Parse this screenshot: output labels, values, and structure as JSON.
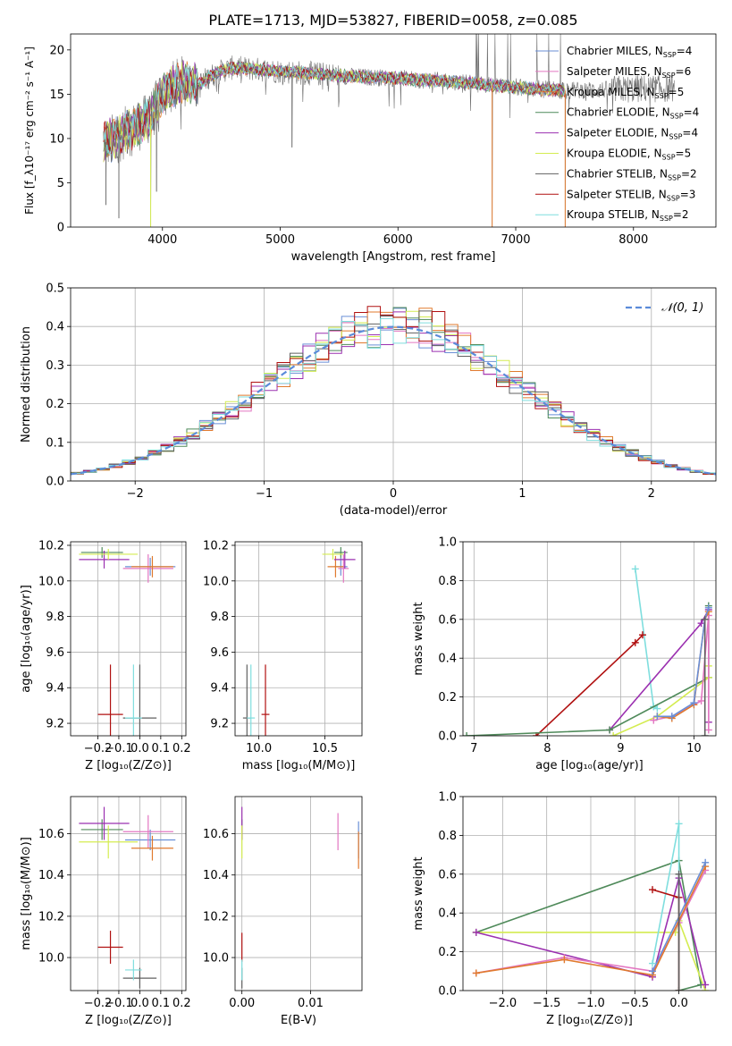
{
  "figure_title": "PLATE=1713, MJD=53827, FIBERID=0058, z=0.085",
  "colors": {
    "Chabrier MILES": "#6a8fd6",
    "Salpeter MILES": "#e377c2",
    "Kroupa MILES": "#e07a2e",
    "Chabrier ELODIE": "#4f8a5a",
    "Salpeter ELODIE": "#9b30b0",
    "Kroupa ELODIE": "#d4ec50",
    "Chabrier STELIB": "#606060",
    "Salpeter STELIB": "#b01010",
    "Kroupa STELIB": "#7fdede",
    "gaussian": "#5b8bd9"
  },
  "chart_data": [
    {
      "type": "line",
      "name": "spectrum",
      "xlabel": "wavelength [Angstrom, rest frame]",
      "ylabel": "Flux [f_λ10⁻¹⁷ erg cm⁻² s⁻¹ A⁻¹]",
      "xlim": [
        3220,
        8700
      ],
      "ylim": [
        0,
        21.8
      ],
      "xticks": [
        4000,
        5000,
        6000,
        7000,
        8000
      ],
      "yticks": [
        0,
        5,
        10,
        15,
        20
      ],
      "legend_position": "right",
      "series": [
        {
          "name": "Chabrier MILES",
          "nssp": 4
        },
        {
          "name": "Salpeter MILES",
          "nssp": 6
        },
        {
          "name": "Kroupa MILES",
          "nssp": 5
        },
        {
          "name": "Chabrier ELODIE",
          "nssp": 4
        },
        {
          "name": "Salpeter ELODIE",
          "nssp": 4
        },
        {
          "name": "Kroupa ELODIE",
          "nssp": 5
        },
        {
          "name": "Chabrier STELIB",
          "nssp": 2
        },
        {
          "name": "Salpeter STELIB",
          "nssp": 3
        },
        {
          "name": "Kroupa STELIB",
          "nssp": 2
        }
      ],
      "continuum": {
        "x": [
          3500,
          3600,
          3700,
          3800,
          3900,
          4000,
          4100,
          4200,
          4300,
          4400,
          4500,
          4600,
          4800,
          5000,
          5200,
          5400,
          5600,
          5800,
          6000,
          6200,
          6400,
          6600,
          6800,
          7000,
          7200,
          7400
        ],
        "y": [
          9.5,
          10.0,
          10.8,
          11.5,
          12.5,
          15.0,
          16.0,
          16.5,
          16.0,
          17.0,
          17.6,
          18.0,
          17.8,
          17.6,
          17.4,
          17.2,
          17.0,
          16.9,
          16.8,
          16.6,
          16.5,
          16.3,
          16.0,
          15.8,
          15.6,
          15.4
        ]
      },
      "dips": [
        {
          "x": 3520,
          "y": 2.5
        },
        {
          "x": 3630,
          "y": 1.0
        },
        {
          "x": 3900,
          "y": 0.0
        },
        {
          "x": 3950,
          "y": 4.0
        },
        {
          "x": 5100,
          "y": 9.0
        },
        {
          "x": 6800,
          "y": 0.0
        },
        {
          "x": 7420,
          "y": 0.0
        }
      ]
    },
    {
      "type": "histogram",
      "name": "residuals",
      "xlabel": "(data-model)/error",
      "ylabel": "Normed distribution",
      "xlim": [
        -2.5,
        2.5
      ],
      "ylim": [
        0,
        0.5
      ],
      "xticks": [
        -2,
        -1,
        0,
        1,
        2
      ],
      "yticks": [
        0.0,
        0.1,
        0.2,
        0.3,
        0.4,
        0.5
      ],
      "grid": true,
      "bin_width": 0.1,
      "legend": "𝒩(0, 1)"
    },
    {
      "type": "scatter",
      "name": "age_vs_Z",
      "xlabel": "Z [log₁₀(Z/Z⊙)]",
      "ylabel": "age  [log₁₀(age/yr)]",
      "xlim": [
        -0.33,
        0.22
      ],
      "ylim": [
        9.13,
        10.22
      ],
      "xticks": [
        -0.2,
        -0.1,
        0.0,
        0.1,
        0.2
      ],
      "yticks": [
        9.2,
        9.4,
        9.6,
        9.8,
        10.0,
        10.2
      ],
      "grid": true,
      "points": [
        {
          "series": "Chabrier MILES",
          "x": 0.05,
          "y": 10.08,
          "xerr": 0.12,
          "yerr": 0.05
        },
        {
          "series": "Salpeter MILES",
          "x": 0.04,
          "y": 10.07,
          "xerr": 0.12,
          "yerr": 0.08
        },
        {
          "series": "Kroupa MILES",
          "x": 0.06,
          "y": 10.08,
          "xerr": 0.1,
          "yerr": 0.06
        },
        {
          "series": "Chabrier ELODIE",
          "x": -0.18,
          "y": 10.16,
          "xerr": 0.1,
          "yerr": 0.03
        },
        {
          "series": "Salpeter ELODIE",
          "x": -0.17,
          "y": 10.12,
          "xerr": 0.12,
          "yerr": 0.05
        },
        {
          "series": "Kroupa ELODIE",
          "x": -0.15,
          "y": 10.15,
          "xerr": 0.14,
          "yerr": 0.03
        },
        {
          "series": "Chabrier STELIB",
          "x": 0.0,
          "y": 9.23,
          "xerr": 0.08,
          "yerr": 0.3
        },
        {
          "series": "Salpeter STELIB",
          "x": -0.14,
          "y": 9.25,
          "xerr": 0.06,
          "yerr": 0.28
        },
        {
          "series": "Kroupa STELIB",
          "x": -0.03,
          "y": 9.23,
          "xerr": 0.04,
          "yerr": 0.3
        }
      ]
    },
    {
      "type": "scatter",
      "name": "age_vs_mass",
      "xlabel": "mass [log₁₀(M/M⊙)]",
      "ylabel": "",
      "xlim": [
        9.82,
        10.78
      ],
      "ylim": [
        9.13,
        10.22
      ],
      "xticks": [
        10.0,
        10.5
      ],
      "yticks": [
        9.2,
        9.4,
        9.6,
        9.8,
        10.0,
        10.2
      ],
      "grid": true,
      "points": [
        {
          "series": "Chabrier MILES",
          "x": 10.62,
          "y": 10.08,
          "xerr": 0.05,
          "yerr": 0.05
        },
        {
          "series": "Salpeter MILES",
          "x": 10.64,
          "y": 10.07,
          "xerr": 0.04,
          "yerr": 0.08
        },
        {
          "series": "Kroupa MILES",
          "x": 10.58,
          "y": 10.08,
          "xerr": 0.06,
          "yerr": 0.06
        },
        {
          "series": "Chabrier ELODIE",
          "x": 10.62,
          "y": 10.16,
          "xerr": 0.05,
          "yerr": 0.03
        },
        {
          "series": "Salpeter ELODIE",
          "x": 10.65,
          "y": 10.12,
          "xerr": 0.08,
          "yerr": 0.05
        },
        {
          "series": "Kroupa ELODIE",
          "x": 10.56,
          "y": 10.15,
          "xerr": 0.08,
          "yerr": 0.03
        },
        {
          "series": "Chabrier STELIB",
          "x": 9.91,
          "y": 9.23,
          "xerr": 0.03,
          "yerr": 0.3
        },
        {
          "series": "Salpeter STELIB",
          "x": 10.05,
          "y": 9.25,
          "xerr": 0.03,
          "yerr": 0.28
        },
        {
          "series": "Kroupa STELIB",
          "x": 9.94,
          "y": 9.23,
          "xerr": 0.03,
          "yerr": 0.3
        }
      ]
    },
    {
      "type": "line",
      "name": "mass_weight_vs_age",
      "xlabel": "age  [log₁₀(age/yr)]",
      "ylabel": "mass weight",
      "xlim": [
        6.85,
        10.3
      ],
      "ylim": [
        0,
        1.0
      ],
      "xticks": [
        7,
        8,
        9,
        10
      ],
      "yticks": [
        0.0,
        0.2,
        0.4,
        0.6,
        0.8,
        1.0
      ],
      "grid": true,
      "series": [
        {
          "name": "Kroupa STELIB",
          "x": [
            9.2,
            9.45,
            9.5
          ],
          "y": [
            0.86,
            0.15,
            0.14
          ]
        },
        {
          "name": "Salpeter STELIB",
          "x": [
            7.85,
            9.2,
            9.3
          ],
          "y": [
            0.0,
            0.48,
            0.52
          ]
        },
        {
          "name": "Salpeter ELODIE",
          "x": [
            8.85,
            10.1,
            10.2,
            10.2
          ],
          "y": [
            0.03,
            0.58,
            0.65,
            0.07
          ]
        },
        {
          "name": "Chabrier ELODIE",
          "x": [
            6.9,
            8.85,
            10.2,
            10.2
          ],
          "y": [
            0.0,
            0.03,
            0.3,
            0.67
          ]
        },
        {
          "name": "Kroupa ELODIE",
          "x": [
            8.9,
            9.5,
            10.2,
            10.2
          ],
          "y": [
            0.0,
            0.1,
            0.3,
            0.36
          ]
        },
        {
          "name": "Salpeter MILES",
          "x": [
            9.45,
            9.7,
            10.1,
            10.2,
            10.2
          ],
          "y": [
            0.08,
            0.1,
            0.18,
            0.62,
            0.03
          ]
        },
        {
          "name": "Kroupa MILES",
          "x": [
            9.5,
            9.7,
            10.0,
            10.15,
            10.2
          ],
          "y": [
            0.1,
            0.09,
            0.16,
            0.6,
            0.64
          ]
        },
        {
          "name": "Chabrier MILES",
          "x": [
            9.5,
            9.7,
            10.0,
            10.15,
            10.2
          ],
          "y": [
            0.1,
            0.1,
            0.17,
            0.6,
            0.66
          ]
        },
        {
          "name": "Chabrier STELIB",
          "x": [
            10.15,
            10.15
          ],
          "y": [
            0.0,
            0.6
          ]
        }
      ]
    },
    {
      "type": "scatter",
      "name": "mass_vs_Z",
      "xlabel": "Z [log₁₀(Z/Z⊙)]",
      "ylabel": "mass [log₁₀(M/M⊙)]",
      "xlim": [
        -0.33,
        0.22
      ],
      "ylim": [
        9.84,
        10.78
      ],
      "xticks": [
        -0.2,
        -0.1,
        0.0,
        0.1,
        0.2
      ],
      "yticks": [
        10.0,
        10.2,
        10.4,
        10.6
      ],
      "grid": true,
      "points": [
        {
          "series": "Chabrier MILES",
          "x": 0.05,
          "y": 10.57,
          "xerr": 0.12,
          "yerr": 0.05
        },
        {
          "series": "Salpeter MILES",
          "x": 0.04,
          "y": 10.61,
          "xerr": 0.12,
          "yerr": 0.08
        },
        {
          "series": "Kroupa MILES",
          "x": 0.06,
          "y": 10.53,
          "xerr": 0.1,
          "yerr": 0.06
        },
        {
          "series": "Chabrier ELODIE",
          "x": -0.18,
          "y": 10.62,
          "xerr": 0.1,
          "yerr": 0.05
        },
        {
          "series": "Salpeter ELODIE",
          "x": -0.17,
          "y": 10.65,
          "xerr": 0.12,
          "yerr": 0.08
        },
        {
          "series": "Kroupa ELODIE",
          "x": -0.15,
          "y": 10.56,
          "xerr": 0.14,
          "yerr": 0.08
        },
        {
          "series": "Chabrier STELIB",
          "x": 0.0,
          "y": 9.9,
          "xerr": 0.08,
          "yerr": 0.05
        },
        {
          "series": "Salpeter STELIB",
          "x": -0.14,
          "y": 10.05,
          "xerr": 0.06,
          "yerr": 0.08
        },
        {
          "series": "Kroupa STELIB",
          "x": -0.03,
          "y": 9.94,
          "xerr": 0.04,
          "yerr": 0.05
        }
      ]
    },
    {
      "type": "scatter",
      "name": "mass_vs_ebv",
      "xlabel": "E(B-V)",
      "ylabel": "",
      "xlim": [
        -0.001,
        0.0175
      ],
      "ylim": [
        9.84,
        10.78
      ],
      "xticks": [
        0.0,
        0.01
      ],
      "yticks": [
        10.0,
        10.2,
        10.4,
        10.6
      ],
      "grid": true,
      "points": [
        {
          "series": "Chabrier MILES",
          "x": 0.017,
          "y": 10.57,
          "xerr": 0.0,
          "yerr": 0.09
        },
        {
          "series": "Salpeter MILES",
          "x": 0.014,
          "y": 10.61,
          "xerr": 0.0,
          "yerr": 0.09
        },
        {
          "series": "Kroupa MILES",
          "x": 0.017,
          "y": 10.52,
          "xerr": 0.0,
          "yerr": 0.09
        },
        {
          "series": "Chabrier ELODIE",
          "x": 0.0,
          "y": 10.62,
          "xerr": 0.0,
          "yerr": 0.05
        },
        {
          "series": "Salpeter ELODIE",
          "x": 0.0,
          "y": 10.65,
          "xerr": 0.0,
          "yerr": 0.08
        },
        {
          "series": "Kroupa ELODIE",
          "x": 0.0,
          "y": 10.56,
          "xerr": 0.0,
          "yerr": 0.08
        },
        {
          "series": "Chabrier STELIB",
          "x": 0.0,
          "y": 9.9,
          "xerr": 0.0,
          "yerr": 0.05
        },
        {
          "series": "Salpeter STELIB",
          "x": 0.0,
          "y": 10.05,
          "xerr": 0.0,
          "yerr": 0.07
        },
        {
          "series": "Kroupa STELIB",
          "x": 0.0,
          "y": 9.94,
          "xerr": 0.0,
          "yerr": 0.05
        }
      ]
    },
    {
      "type": "line",
      "name": "mass_weight_vs_Z",
      "xlabel": "Z [log₁₀(Z/Z⊙)]",
      "ylabel": "mass weight",
      "xlim": [
        -2.45,
        0.42
      ],
      "ylim": [
        0,
        1.0
      ],
      "xticks": [
        -2.0,
        -1.5,
        -1.0,
        -0.5,
        0.0
      ],
      "yticks": [
        0.0,
        0.2,
        0.4,
        0.6,
        0.8,
        1.0
      ],
      "grid": true,
      "series": [
        {
          "name": "Chabrier ELODIE",
          "x": [
            -2.3,
            0.0,
            0.25,
            0.0
          ],
          "y": [
            0.3,
            0.67,
            0.03,
            0.0
          ]
        },
        {
          "name": "Kroupa ELODIE",
          "x": [
            -2.3,
            -0.04,
            0.0,
            0.3
          ],
          "y": [
            0.3,
            0.3,
            0.36,
            0.0
          ]
        },
        {
          "name": "Salpeter ELODIE",
          "x": [
            -2.3,
            -0.3,
            0.0,
            0.3
          ],
          "y": [
            0.3,
            0.07,
            0.58,
            0.03
          ]
        },
        {
          "name": "Salpeter MILES",
          "x": [
            -2.3,
            -1.3,
            -0.3,
            0.0,
            0.3
          ],
          "y": [
            0.09,
            0.17,
            0.1,
            0.35,
            0.62
          ]
        },
        {
          "name": "Kroupa MILES",
          "x": [
            -2.3,
            -1.3,
            -0.3,
            0.3
          ],
          "y": [
            0.09,
            0.16,
            0.08,
            0.64
          ]
        },
        {
          "name": "Chabrier MILES",
          "x": [
            -0.3,
            0.3
          ],
          "y": [
            0.1,
            0.66
          ]
        },
        {
          "name": "Kroupa STELIB",
          "x": [
            -0.3,
            0.0,
            0.0
          ],
          "y": [
            0.14,
            0.86,
            0.0
          ]
        },
        {
          "name": "Salpeter STELIB",
          "x": [
            -0.3,
            0.0,
            0.0
          ],
          "y": [
            0.52,
            0.48,
            0.0
          ]
        },
        {
          "name": "Chabrier STELIB",
          "x": [
            0.0,
            0.0
          ],
          "y": [
            0.0,
            0.6
          ]
        }
      ]
    }
  ]
}
